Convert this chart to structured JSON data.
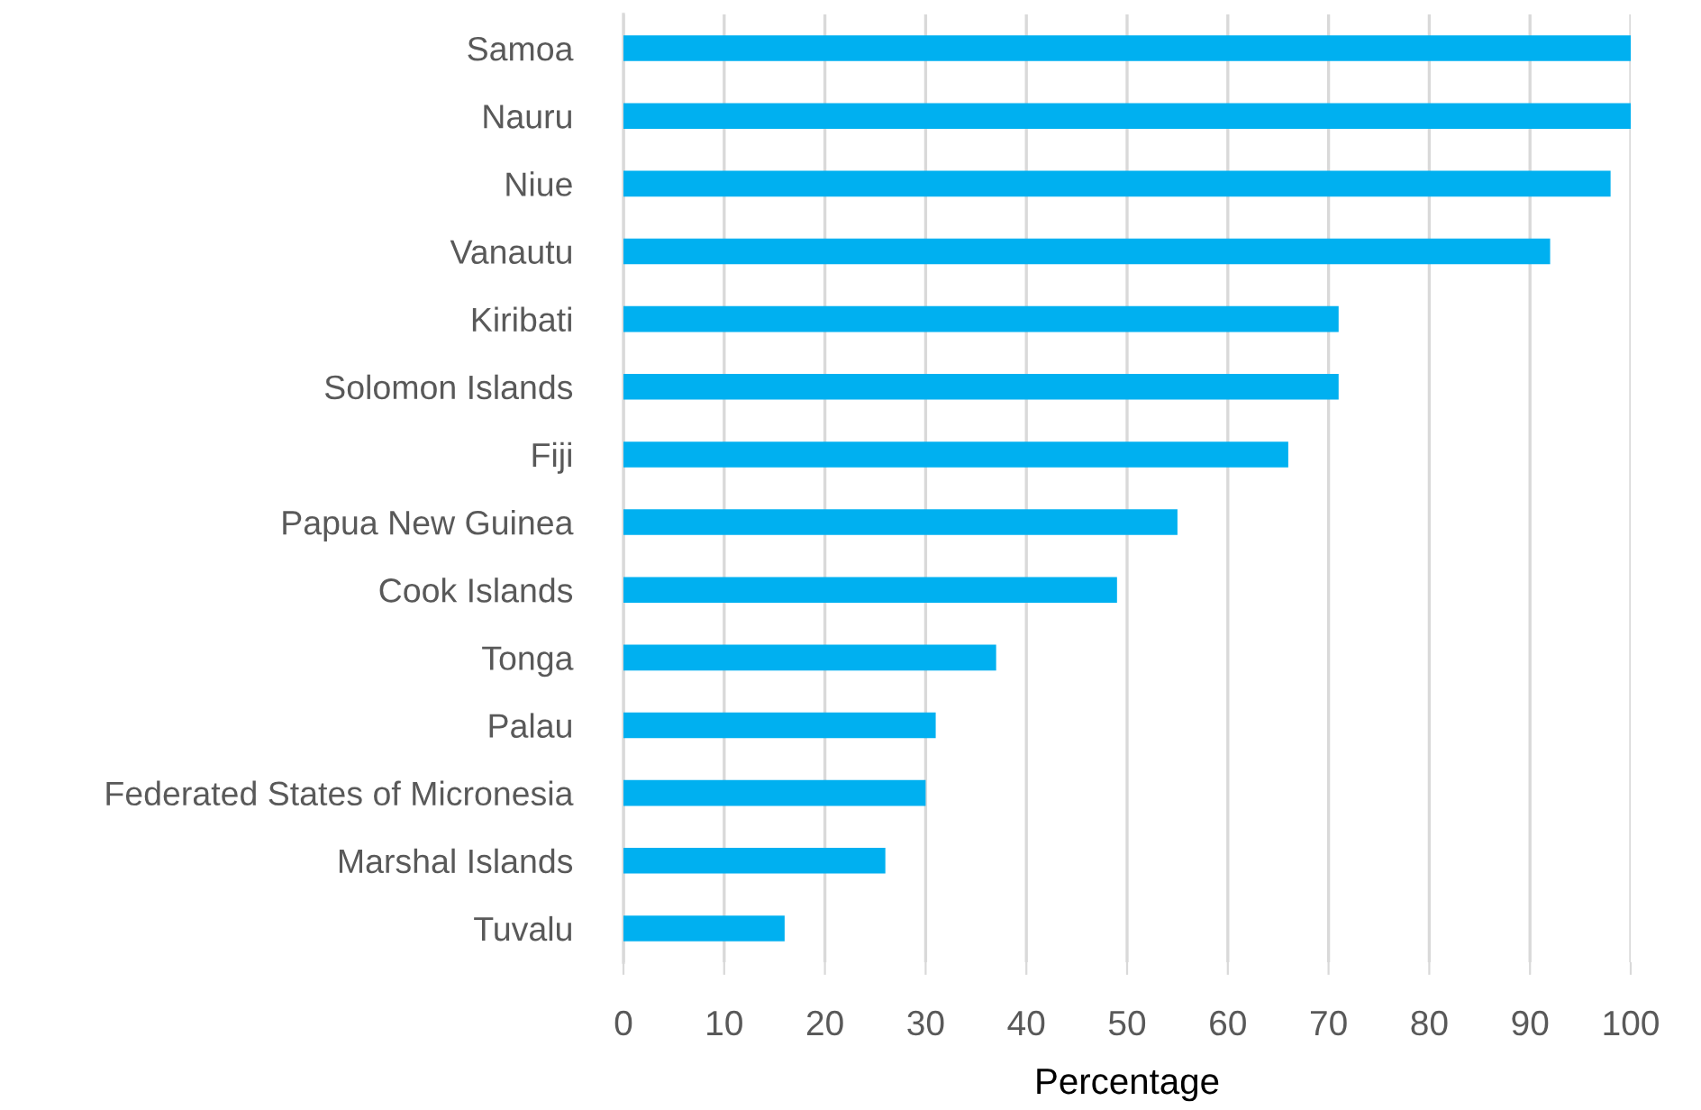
{
  "chart_data": {
    "type": "bar",
    "orientation": "horizontal",
    "categories": [
      "Samoa",
      "Nauru",
      "Niue",
      "Vanautu",
      "Kiribati",
      "Solomon Islands",
      "Fiji",
      "Papua New Guinea",
      "Cook Islands",
      "Tonga",
      "Palau",
      "Federated States of Micronesia",
      "Marshal Islands",
      "Tuvalu"
    ],
    "values": [
      100,
      100,
      98,
      92,
      71,
      71,
      66,
      55,
      49,
      37,
      31,
      30,
      26,
      16
    ],
    "color": "#00b0f0",
    "xlabel": "Percentage",
    "xlim": [
      0,
      100
    ],
    "xticks": [
      0,
      10,
      20,
      30,
      40,
      50,
      60,
      70,
      80,
      90,
      100
    ],
    "grid": "x"
  }
}
